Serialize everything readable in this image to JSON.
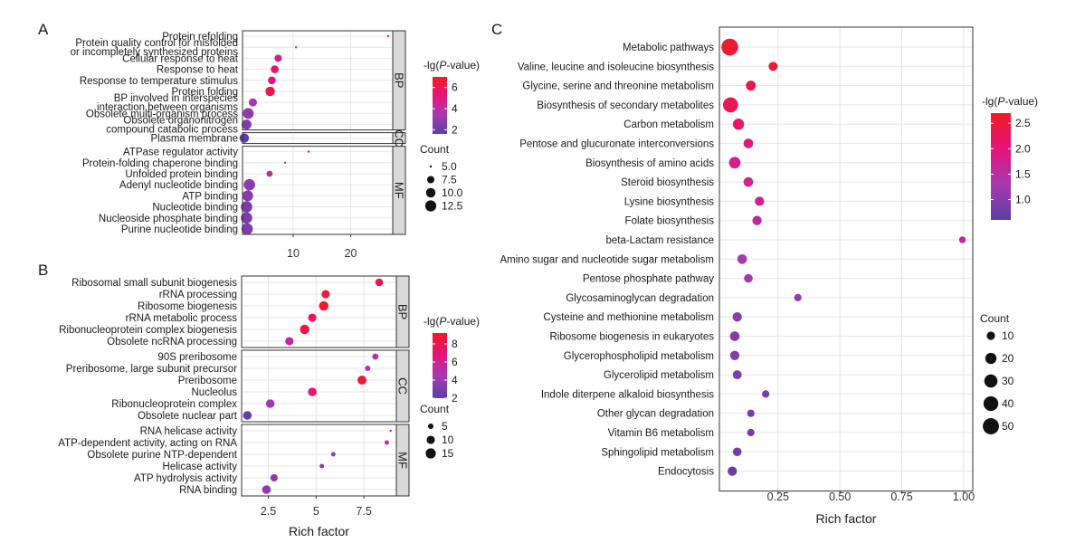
{
  "panel_letters": [
    "A",
    "B",
    "C"
  ],
  "chart_data": [
    {
      "type": "scatter",
      "panel": "A",
      "xlabel": "",
      "xticks": [
        10,
        20
      ],
      "xlim": [
        1.2,
        27.3
      ],
      "facets": [
        {
          "name": "BP",
          "terms": [
            {
              "label": [
                "Protein refolding"
              ],
              "rich": 26.5,
              "count": 5.0,
              "lgp": 6.6
            },
            {
              "label": [
                "Protein quality control for misfolded",
                "or incompletely synthesized proteins"
              ],
              "rich": 10.5,
              "count": 5.0,
              "lgp": 4.2
            },
            {
              "label": [
                "Cellular response to heat"
              ],
              "rich": 7.4,
              "count": 7.5,
              "lgp": 4.6
            },
            {
              "label": [
                "Response to heat"
              ],
              "rich": 6.8,
              "count": 8.0,
              "lgp": 5.4
            },
            {
              "label": [
                "Response to temperature stimulus"
              ],
              "rich": 6.3,
              "count": 8.0,
              "lgp": 5.1
            },
            {
              "label": [
                "Protein folding"
              ],
              "rich": 6.0,
              "count": 10.0,
              "lgp": 6.0
            },
            {
              "label": [
                "BP involved in interspecies",
                "interaction between organisms"
              ],
              "rich": 3.0,
              "count": 8.5,
              "lgp": 3.4
            },
            {
              "label": [
                "Obsolete multi-organism process"
              ],
              "rich": 2.2,
              "count": 12.0,
              "lgp": 2.9
            },
            {
              "label": [
                "Obsolete organonitrogen",
                "compound catabolic process"
              ],
              "rich": 1.9,
              "count": 10.5,
              "lgp": 2.5
            }
          ]
        },
        {
          "name": "CC",
          "terms": [
            {
              "label": [
                "Plasma membrane"
              ],
              "rich": 1.5,
              "count": 10.0,
              "lgp": 1.6
            }
          ]
        },
        {
          "name": "MF",
          "terms": [
            {
              "label": [
                "ATPase regulator activity"
              ],
              "rich": 12.7,
              "count": 5.0,
              "lgp": 4.5
            },
            {
              "label": [
                "Protein-folding chaperone binding"
              ],
              "rich": 8.6,
              "count": 5.0,
              "lgp": 3.6
            },
            {
              "label": [
                "Unfolded protein binding"
              ],
              "rich": 5.9,
              "count": 6.5,
              "lgp": 4.1
            },
            {
              "label": [
                "Adenyl nucleotide binding"
              ],
              "rich": 2.4,
              "count": 13.0,
              "lgp": 2.8
            },
            {
              "label": [
                "ATP binding"
              ],
              "rich": 2.1,
              "count": 12.0,
              "lgp": 2.6
            },
            {
              "label": [
                "Nucleotide binding"
              ],
              "rich": 1.9,
              "count": 13.0,
              "lgp": 2.4
            },
            {
              "label": [
                "Nucleoside phosphate binding"
              ],
              "rich": 1.9,
              "count": 13.0,
              "lgp": 2.4
            },
            {
              "label": [
                "Purine nucleotide binding"
              ],
              "rich": 2.0,
              "count": 13.0,
              "lgp": 2.5
            }
          ]
        }
      ],
      "legend_color": {
        "title_prefix": "-lg(",
        "title_italic": "P",
        "title_suffix": "-value)",
        "min": 1.6,
        "max": 7.0,
        "ticks": [
          2,
          4,
          6
        ]
      },
      "legend_size": {
        "title": "Count",
        "values": [
          5.0,
          7.5,
          10.0,
          12.5
        ],
        "labels": [
          "5.0",
          "7.5",
          "10.0",
          "12.5"
        ],
        "min": 5.0,
        "max": 13.0
      }
    },
    {
      "type": "scatter",
      "panel": "B",
      "xlabel": "Rich factor",
      "xticks": [
        2.5,
        5.0,
        7.5
      ],
      "xlim": [
        1.1,
        9.2
      ],
      "facets": [
        {
          "name": "BP",
          "terms": [
            {
              "label": [
                "Ribosomal small subunit biogenesis"
              ],
              "rich": 8.3,
              "count": 9,
              "lgp": 8.2
            },
            {
              "label": [
                "rRNA processing"
              ],
              "rich": 5.5,
              "count": 10,
              "lgp": 8.6
            },
            {
              "label": [
                "Ribosome biogenesis"
              ],
              "rich": 5.4,
              "count": 13,
              "lgp": 9.0
            },
            {
              "label": [
                "rRNA metabolic process"
              ],
              "rich": 4.8,
              "count": 10,
              "lgp": 7.7
            },
            {
              "label": [
                "Ribonucleoprotein complex biogenesis"
              ],
              "rich": 4.4,
              "count": 13,
              "lgp": 8.4
            },
            {
              "label": [
                "Obsolete ncRNA processing"
              ],
              "rich": 3.6,
              "count": 10,
              "lgp": 5.4
            }
          ]
        },
        {
          "name": "CC",
          "terms": [
            {
              "label": [
                "90S preribosome"
              ],
              "rich": 8.1,
              "count": 6,
              "lgp": 5.1
            },
            {
              "label": [
                "Preribosome, large subunit precursor"
              ],
              "rich": 7.7,
              "count": 5,
              "lgp": 4.8
            },
            {
              "label": [
                "Preribosome"
              ],
              "rich": 7.4,
              "count": 12,
              "lgp": 8.6
            },
            {
              "label": [
                "Nucleolus"
              ],
              "rich": 4.8,
              "count": 11,
              "lgp": 7.1
            },
            {
              "label": [
                "Ribonucleoprotein complex"
              ],
              "rich": 2.6,
              "count": 11,
              "lgp": 4.2
            },
            {
              "label": [
                "Obsolete nuclear part"
              ],
              "rich": 1.4,
              "count": 11,
              "lgp": 2.3
            }
          ]
        },
        {
          "name": "MF",
          "terms": [
            {
              "label": [
                "RNA helicase activity"
              ],
              "rich": 8.9,
              "count": 3,
              "lgp": 5.0
            },
            {
              "label": [
                "ATP-dependent activity, acting on RNA"
              ],
              "rich": 8.7,
              "count": 4,
              "lgp": 5.0
            },
            {
              "label": [
                "Obsolete purine NTP-dependent"
              ],
              "rich": 5.9,
              "count": 4,
              "lgp": 3.7
            },
            {
              "label": [
                "Helicase activity"
              ],
              "rich": 5.3,
              "count": 4,
              "lgp": 3.5
            },
            {
              "label": [
                "ATP hydrolysis activity"
              ],
              "rich": 2.8,
              "count": 8,
              "lgp": 3.5
            },
            {
              "label": [
                "RNA binding"
              ],
              "rich": 2.4,
              "count": 11,
              "lgp": 3.8
            }
          ]
        }
      ],
      "legend_color": {
        "title_prefix": "-lg(",
        "title_italic": "P",
        "title_suffix": "-value)",
        "min": 2.0,
        "max": 9.2,
        "ticks": [
          2,
          4,
          6,
          8
        ]
      },
      "legend_size": {
        "title": "Count",
        "values": [
          5,
          10,
          15
        ],
        "labels": [
          "5",
          "10",
          "15"
        ],
        "min": 3,
        "max": 15
      }
    },
    {
      "type": "scatter",
      "panel": "C",
      "xlabel": "Rich factor",
      "xticks": [
        0.25,
        0.5,
        0.75,
        1.0
      ],
      "xtick_labels": [
        "0.25",
        "0.50",
        "0.75",
        "1.00"
      ],
      "xlim": [
        0.013,
        1.037
      ],
      "facets": [
        {
          "name": "",
          "terms": [
            {
              "label": [
                "Metabolic pathways"
              ],
              "rich": 0.055,
              "count": 55,
              "lgp": 2.6
            },
            {
              "label": [
                "Valine, leucine and isoleucine biosynthesis"
              ],
              "rich": 0.23,
              "count": 12,
              "lgp": 2.55
            },
            {
              "label": [
                "Glycine, serine and threonine metabolism"
              ],
              "rich": 0.14,
              "count": 15,
              "lgp": 2.4
            },
            {
              "label": [
                "Biosynthesis of secondary metabolites"
              ],
              "rich": 0.058,
              "count": 42,
              "lgp": 2.3
            },
            {
              "label": [
                "Carbon metabolism"
              ],
              "rich": 0.09,
              "count": 20,
              "lgp": 2.2
            },
            {
              "label": [
                "Pentose and glucuronate interconversions"
              ],
              "rich": 0.13,
              "count": 14,
              "lgp": 1.9
            },
            {
              "label": [
                "Biosynthesis of amino acids"
              ],
              "rich": 0.075,
              "count": 22,
              "lgp": 1.8
            },
            {
              "label": [
                "Steroid biosynthesis"
              ],
              "rich": 0.13,
              "count": 14,
              "lgp": 1.7
            },
            {
              "label": [
                "Lysine biosynthesis"
              ],
              "rich": 0.175,
              "count": 13,
              "lgp": 1.75
            },
            {
              "label": [
                "Folate biosynthesis"
              ],
              "rich": 0.165,
              "count": 13,
              "lgp": 1.6
            },
            {
              "label": [
                "beta-Lactam resistance"
              ],
              "rich": 0.995,
              "count": 7,
              "lgp": 1.5
            },
            {
              "label": [
                "Amino sugar and nucleotide sugar metabolism"
              ],
              "rich": 0.105,
              "count": 14,
              "lgp": 1.3
            },
            {
              "label": [
                "Pentose phosphate pathway"
              ],
              "rich": 0.13,
              "count": 11,
              "lgp": 1.3
            },
            {
              "label": [
                "Glycosaminoglycan degradation"
              ],
              "rich": 0.33,
              "count": 8,
              "lgp": 1.15
            },
            {
              "label": [
                "Cysteine and methionine metabolism"
              ],
              "rich": 0.085,
              "count": 13,
              "lgp": 1.05
            },
            {
              "label": [
                "Ribosome biogenesis in eukaryotes"
              ],
              "rich": 0.075,
              "count": 14,
              "lgp": 1.0
            },
            {
              "label": [
                "Glycerophospholipid metabolism"
              ],
              "rich": 0.075,
              "count": 13,
              "lgp": 0.95
            },
            {
              "label": [
                "Glycerolipid metabolism"
              ],
              "rich": 0.085,
              "count": 12,
              "lgp": 0.95
            },
            {
              "label": [
                "Indole diterpene alkaloid biosynthesis"
              ],
              "rich": 0.2,
              "count": 8,
              "lgp": 0.9
            },
            {
              "label": [
                "Other glycan degradation"
              ],
              "rich": 0.14,
              "count": 8,
              "lgp": 0.85
            },
            {
              "label": [
                "Vitamin B6 metabolism"
              ],
              "rich": 0.14,
              "count": 8,
              "lgp": 0.85
            },
            {
              "label": [
                "Sphingolipid metabolism"
              ],
              "rich": 0.085,
              "count": 11,
              "lgp": 0.8
            },
            {
              "label": [
                "Endocytosis"
              ],
              "rich": 0.065,
              "count": 13,
              "lgp": 0.75
            }
          ]
        }
      ],
      "legend_color": {
        "title_prefix": "-lg(",
        "title_italic": "P",
        "title_suffix": "-value)",
        "min": 0.6,
        "max": 2.7,
        "ticks": [
          1.0,
          1.5,
          2.0,
          2.5
        ],
        "tick_labels": [
          "1.0",
          "1.5",
          "2.0",
          "2.5"
        ]
      },
      "legend_size": {
        "title": "Count",
        "values": [
          10,
          20,
          30,
          40,
          50
        ],
        "labels": [
          "10",
          "20",
          "30",
          "40",
          "50"
        ],
        "min": 5,
        "max": 55
      }
    }
  ],
  "colors": {
    "grid": "#e6e6e6",
    "panel_border": "#333333",
    "strip_fill": "#d9d9d9",
    "gradient": [
      "#5b3fa3",
      "#a53ab0",
      "#e6137c",
      "#ee1c24"
    ]
  }
}
